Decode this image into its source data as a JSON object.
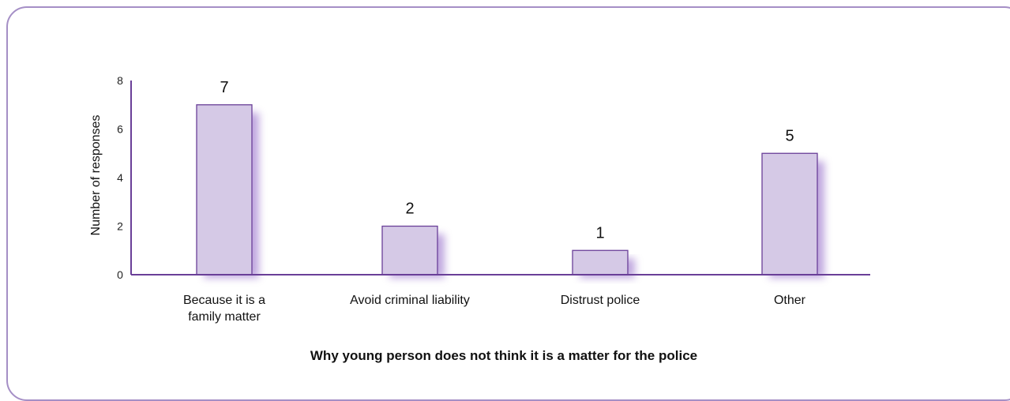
{
  "chart_data": {
    "type": "bar",
    "categories": [
      [
        "Because it is a",
        "family matter"
      ],
      [
        "Avoid criminal liability"
      ],
      [
        "Distrust police"
      ],
      [
        "Other"
      ]
    ],
    "values": [
      7,
      2,
      1,
      5
    ],
    "ylabel": "Number of responses",
    "xlabel": "Why young person does not think it is a matter for the police",
    "ylim": [
      0,
      8
    ],
    "yticks": [
      0,
      2,
      4,
      6,
      8
    ],
    "grid": false,
    "colors": {
      "bar_fill": "#d5c9e6",
      "bar_stroke": "#6a3f98",
      "axis": "#6a3f98",
      "shadow": "#8b5fc4",
      "frame": "#a58fc6"
    }
  }
}
